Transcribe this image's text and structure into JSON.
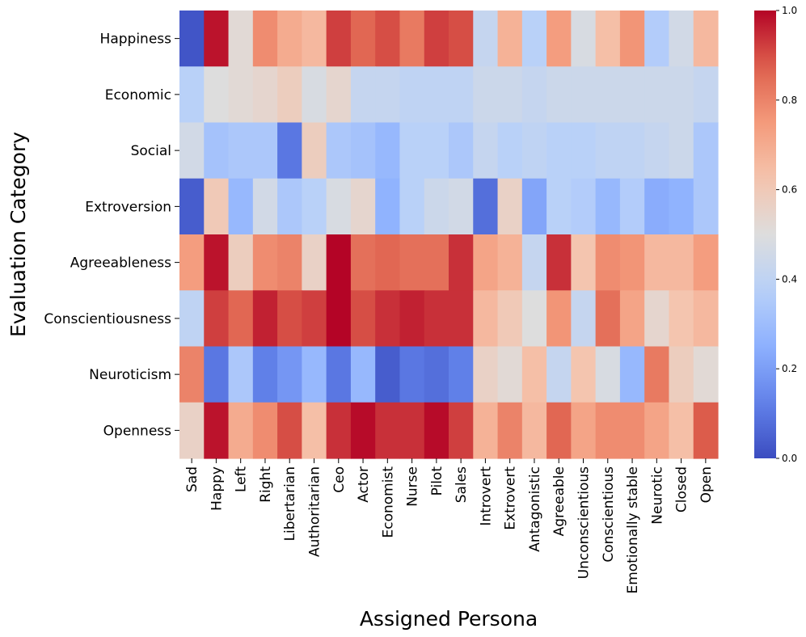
{
  "chart_data": {
    "type": "heatmap",
    "title": "",
    "xlabel": "Assigned Persona",
    "ylabel": "Evaluation Category",
    "x_categories": [
      "Sad",
      "Happy",
      "Left",
      "Right",
      "Libertarian",
      "Authoritarian",
      "Ceo",
      "Actor",
      "Economist",
      "Nurse",
      "Pilot",
      "Sales",
      "Introvert",
      "Extrovert",
      "Antagonistic",
      "Agreeable",
      "Unconscientious",
      "Conscientious",
      "Emotionally stable",
      "Neurotic",
      "Closed",
      "Open"
    ],
    "y_categories": [
      "Happiness",
      "Economic",
      "Social",
      "Extroversion",
      "Agreeableness",
      "Conscientiousness",
      "Neuroticism",
      "Openness"
    ],
    "values": [
      [
        0.02,
        0.98,
        0.52,
        0.78,
        0.7,
        0.66,
        0.92,
        0.86,
        0.9,
        0.82,
        0.92,
        0.9,
        0.42,
        0.68,
        0.38,
        0.74,
        0.48,
        0.64,
        0.76,
        0.36,
        0.46,
        0.66
      ],
      [
        0.38,
        0.5,
        0.52,
        0.54,
        0.58,
        0.48,
        0.54,
        0.42,
        0.42,
        0.4,
        0.4,
        0.4,
        0.44,
        0.44,
        0.42,
        0.44,
        0.44,
        0.44,
        0.44,
        0.44,
        0.44,
        0.42
      ],
      [
        0.46,
        0.32,
        0.34,
        0.34,
        0.1,
        0.58,
        0.34,
        0.32,
        0.28,
        0.38,
        0.38,
        0.34,
        0.42,
        0.38,
        0.4,
        0.38,
        0.38,
        0.4,
        0.4,
        0.42,
        0.44,
        0.34
      ],
      [
        0.04,
        0.6,
        0.28,
        0.46,
        0.34,
        0.38,
        0.48,
        0.54,
        0.26,
        0.38,
        0.44,
        0.46,
        0.08,
        0.56,
        0.22,
        0.38,
        0.36,
        0.28,
        0.36,
        0.24,
        0.26,
        0.34
      ],
      [
        0.74,
        0.98,
        0.58,
        0.78,
        0.8,
        0.56,
        1.0,
        0.84,
        0.86,
        0.84,
        0.84,
        0.94,
        0.72,
        0.68,
        0.42,
        0.94,
        0.62,
        0.78,
        0.76,
        0.66,
        0.66,
        0.74
      ],
      [
        0.4,
        0.92,
        0.86,
        0.96,
        0.9,
        0.92,
        1.0,
        0.9,
        0.94,
        0.96,
        0.94,
        0.94,
        0.66,
        0.6,
        0.5,
        0.76,
        0.42,
        0.84,
        0.72,
        0.54,
        0.62,
        0.66
      ],
      [
        0.8,
        0.1,
        0.34,
        0.12,
        0.18,
        0.28,
        0.1,
        0.28,
        0.04,
        0.1,
        0.08,
        0.12,
        0.56,
        0.52,
        0.64,
        0.42,
        0.62,
        0.48,
        0.28,
        0.82,
        0.58,
        0.52
      ],
      [
        0.56,
        0.98,
        0.7,
        0.78,
        0.9,
        0.64,
        0.94,
        0.99,
        0.94,
        0.94,
        0.99,
        0.92,
        0.68,
        0.8,
        0.66,
        0.86,
        0.72,
        0.78,
        0.78,
        0.72,
        0.64,
        0.88
      ]
    ],
    "zlim": [
      0.0,
      1.0
    ],
    "colormap": "coolwarm",
    "colorbar_ticks": [
      "0.0",
      "0.2",
      "0.4",
      "0.6",
      "0.8",
      "1.0"
    ]
  }
}
